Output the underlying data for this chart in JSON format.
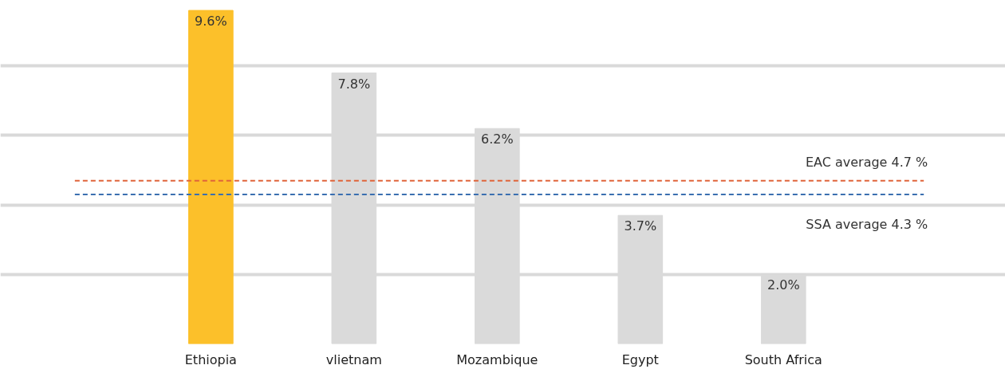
{
  "chart_data": {
    "type": "bar",
    "categories": [
      "Ethiopia",
      "vlietnam",
      "Mozambique",
      "Egypt",
      "South Africa"
    ],
    "values": [
      9.6,
      7.8,
      6.2,
      3.7,
      2.0
    ],
    "colors": [
      "#fcc02a",
      "#dadada",
      "#dadada",
      "#dadada",
      "#dadada"
    ],
    "value_labels": [
      "9.6%",
      "7.8%",
      "6.2%",
      "3.7%",
      "2.0%"
    ],
    "tick_labels": "x",
    "grid": "y",
    "ref_lines": [
      {
        "axis": "y",
        "value": 4.7,
        "label": "EAC average      4.7 %",
        "color": "#e0643a",
        "line_style": "dashed"
      },
      {
        "axis": "y",
        "value": 4.3,
        "label": "SSA average      4.3 %",
        "color": "#3a6fb0",
        "line_style": "dashed"
      }
    ]
  }
}
